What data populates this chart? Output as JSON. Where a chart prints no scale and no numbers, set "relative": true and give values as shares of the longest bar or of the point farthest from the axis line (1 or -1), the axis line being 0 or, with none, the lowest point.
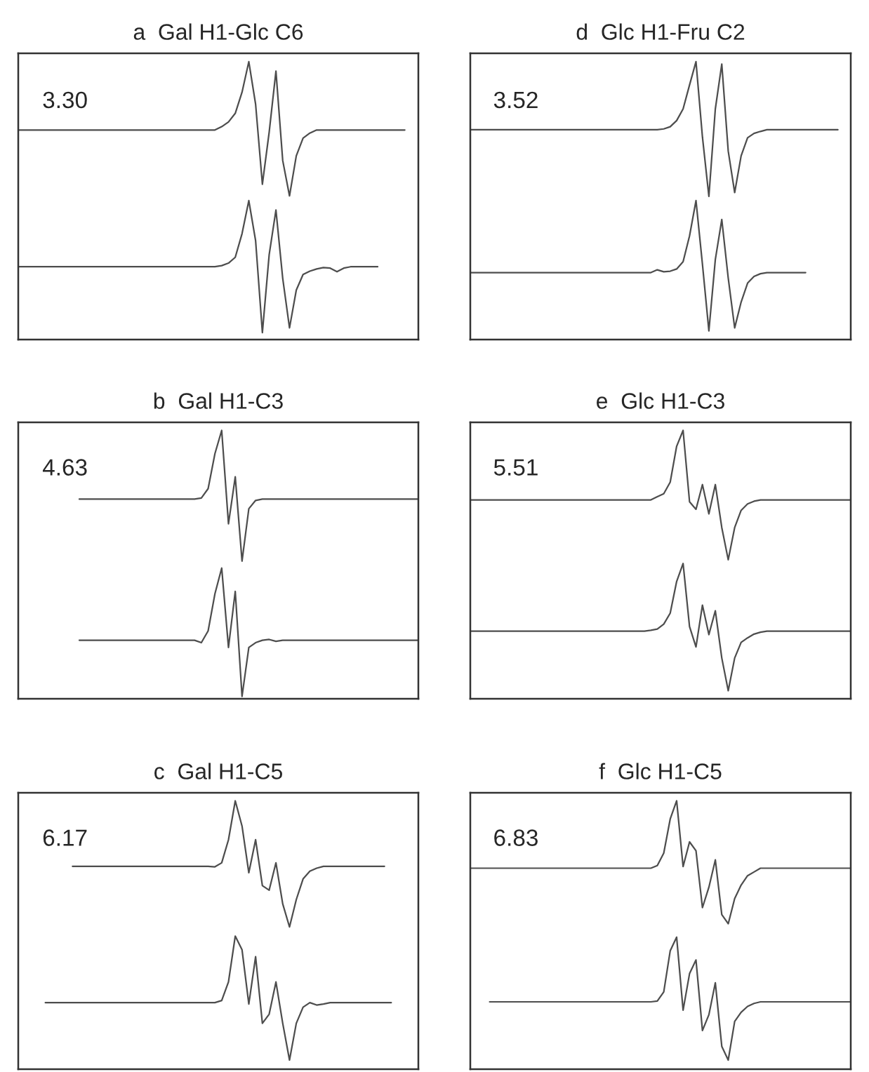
{
  "chart_data": [
    {
      "type": "line",
      "relative": true,
      "title": "a  Gal H1-Glc C6",
      "annotations": [
        "3.30"
      ],
      "categories": [
        null,
        null,
        null,
        null,
        null,
        null,
        null,
        null,
        null,
        null,
        null,
        null,
        null,
        null,
        null,
        null,
        null,
        null,
        null,
        null,
        null,
        null,
        null,
        null,
        null,
        null,
        null,
        null,
        null,
        null,
        null,
        null,
        null,
        null,
        null,
        null,
        null,
        null,
        null,
        null,
        null,
        null,
        null,
        null,
        null,
        null,
        null,
        null,
        null,
        null,
        null,
        null,
        null,
        null,
        null,
        null,
        null,
        null,
        null,
        null
      ],
      "series": [
        {
          "color": "#4d4d4d",
          "values": [
            0.754,
            0.754,
            0.754,
            0.754,
            0.754,
            0.754,
            0.754,
            0.754,
            0.754,
            0.754,
            0.754,
            0.754,
            0.754,
            0.754,
            0.754,
            0.754,
            0.754,
            0.754,
            0.754,
            0.754,
            0.754,
            0.754,
            0.754,
            0.754,
            0.754,
            0.754,
            0.754,
            0.754,
            0.754,
            0.754,
            0.766,
            0.783,
            0.814,
            0.89,
            1.0,
            0.847,
            0.559,
            0.746,
            0.966,
            0.644,
            0.517,
            0.661,
            0.725,
            0.743,
            0.754,
            0.754,
            0.754,
            0.754,
            0.754,
            0.754,
            0.754,
            0.754,
            0.754,
            0.754,
            0.754,
            0.754,
            0.754,
            0.754,
            null,
            null
          ]
        },
        {
          "color": "#4d4d4d",
          "values": [
            0.262,
            0.262,
            0.262,
            0.262,
            0.262,
            0.262,
            0.262,
            0.262,
            0.262,
            0.262,
            0.262,
            0.262,
            0.262,
            0.262,
            0.262,
            0.262,
            0.262,
            0.262,
            0.262,
            0.262,
            0.262,
            0.262,
            0.262,
            0.262,
            0.262,
            0.262,
            0.262,
            0.262,
            0.262,
            0.262,
            0.266,
            0.275,
            0.296,
            0.381,
            0.5,
            0.356,
            0.025,
            0.305,
            0.466,
            0.22,
            0.042,
            0.178,
            0.234,
            0.246,
            0.254,
            0.259,
            0.257,
            0.244,
            0.257,
            0.262,
            0.262,
            0.262,
            0.262,
            0.262,
            null,
            null,
            null,
            null,
            null,
            null
          ]
        }
      ]
    },
    {
      "type": "line",
      "relative": true,
      "title": "d  Glc H1-Fru C2",
      "annotations": [
        "3.52"
      ],
      "categories": [
        null,
        null,
        null,
        null,
        null,
        null,
        null,
        null,
        null,
        null,
        null,
        null,
        null,
        null,
        null,
        null,
        null,
        null,
        null,
        null,
        null,
        null,
        null,
        null,
        null,
        null,
        null,
        null,
        null,
        null,
        null,
        null,
        null,
        null,
        null,
        null,
        null,
        null,
        null,
        null,
        null,
        null,
        null,
        null,
        null,
        null,
        null,
        null,
        null,
        null,
        null,
        null,
        null,
        null,
        null,
        null,
        null,
        null,
        null,
        null
      ],
      "series": [
        {
          "color": "#4d4d4d",
          "values": [
            0.755,
            0.755,
            0.755,
            0.755,
            0.755,
            0.755,
            0.755,
            0.755,
            0.755,
            0.755,
            0.755,
            0.755,
            0.755,
            0.755,
            0.755,
            0.755,
            0.755,
            0.755,
            0.755,
            0.755,
            0.755,
            0.755,
            0.755,
            0.755,
            0.755,
            0.755,
            0.755,
            0.755,
            0.755,
            0.755,
            0.758,
            0.766,
            0.788,
            0.83,
            0.916,
            1.0,
            0.729,
            0.515,
            0.83,
            0.991,
            0.678,
            0.529,
            0.661,
            0.726,
            0.742,
            0.749,
            0.755,
            0.755,
            0.755,
            0.755,
            0.755,
            0.755,
            0.755,
            0.755,
            0.755,
            0.755,
            0.755,
            0.755,
            null,
            null
          ]
        },
        {
          "color": "#4d4d4d",
          "values": [
            0.241,
            0.241,
            0.241,
            0.241,
            0.241,
            0.241,
            0.241,
            0.241,
            0.241,
            0.241,
            0.241,
            0.241,
            0.241,
            0.241,
            0.241,
            0.241,
            0.241,
            0.241,
            0.241,
            0.241,
            0.241,
            0.241,
            0.241,
            0.241,
            0.241,
            0.241,
            0.241,
            0.241,
            0.241,
            0.251,
            0.244,
            0.246,
            0.254,
            0.28,
            0.373,
            0.5,
            0.271,
            0.031,
            0.288,
            0.432,
            0.221,
            0.042,
            0.135,
            0.203,
            0.227,
            0.237,
            0.241,
            0.241,
            0.241,
            0.241,
            0.241,
            0.241,
            0.241,
            null,
            null,
            null,
            null,
            null,
            null,
            null
          ]
        }
      ]
    },
    {
      "type": "line",
      "relative": true,
      "title": "b  Gal H1-C3",
      "annotations": [
        "4.63"
      ],
      "categories": [
        null,
        null,
        null,
        null,
        null,
        null,
        null,
        null,
        null,
        null,
        null,
        null,
        null,
        null,
        null,
        null,
        null,
        null,
        null,
        null,
        null,
        null,
        null,
        null,
        null,
        null,
        null,
        null,
        null,
        null,
        null,
        null,
        null,
        null,
        null,
        null,
        null,
        null,
        null,
        null,
        null,
        null,
        null,
        null,
        null,
        null,
        null,
        null,
        null,
        null,
        null,
        null,
        null,
        null,
        null,
        null,
        null,
        null,
        null,
        null
      ],
      "series": [
        {
          "color": "#4d4d4d",
          "values": [
            null,
            null,
            null,
            null,
            null,
            null,
            null,
            null,
            null,
            0.744,
            0.744,
            0.744,
            0.744,
            0.744,
            0.744,
            0.744,
            0.744,
            0.744,
            0.744,
            0.744,
            0.744,
            0.744,
            0.744,
            0.744,
            0.744,
            0.744,
            0.744,
            0.748,
            0.783,
            0.913,
            1.0,
            0.652,
            0.827,
            0.513,
            0.708,
            0.739,
            0.744,
            0.744,
            0.744,
            0.744,
            0.744,
            0.744,
            0.744,
            0.744,
            0.744,
            0.744,
            0.744,
            0.744,
            0.744,
            0.744,
            0.744,
            0.744,
            0.744,
            0.744,
            0.744,
            0.744,
            0.744,
            0.744,
            0.744,
            0.744
          ]
        },
        {
          "color": "#4d4d4d",
          "values": [
            null,
            null,
            null,
            null,
            null,
            null,
            null,
            null,
            null,
            0.218,
            0.218,
            0.218,
            0.218,
            0.218,
            0.218,
            0.218,
            0.218,
            0.218,
            0.218,
            0.218,
            0.218,
            0.218,
            0.218,
            0.218,
            0.218,
            0.218,
            0.218,
            0.209,
            0.253,
            0.391,
            0.487,
            0.191,
            0.4,
            0.009,
            0.191,
            0.209,
            0.218,
            0.221,
            0.214,
            0.218,
            0.218,
            0.218,
            0.218,
            0.218,
            0.218,
            0.218,
            0.218,
            0.218,
            0.218,
            0.218,
            0.218,
            0.218,
            0.218,
            0.218,
            0.218,
            0.218,
            0.218,
            0.218,
            0.218,
            0.218
          ]
        }
      ]
    },
    {
      "type": "line",
      "relative": true,
      "title": "e  Glc H1-C3",
      "annotations": [
        "5.51"
      ],
      "categories": [
        null,
        null,
        null,
        null,
        null,
        null,
        null,
        null,
        null,
        null,
        null,
        null,
        null,
        null,
        null,
        null,
        null,
        null,
        null,
        null,
        null,
        null,
        null,
        null,
        null,
        null,
        null,
        null,
        null,
        null,
        null,
        null,
        null,
        null,
        null,
        null,
        null,
        null,
        null,
        null,
        null,
        null,
        null,
        null,
        null,
        null,
        null,
        null,
        null,
        null,
        null,
        null,
        null,
        null,
        null,
        null,
        null,
        null,
        null,
        null
      ],
      "series": [
        {
          "color": "#4d4d4d",
          "values": [
            0.741,
            0.741,
            0.741,
            0.741,
            0.741,
            0.741,
            0.741,
            0.741,
            0.741,
            0.741,
            0.741,
            0.741,
            0.741,
            0.741,
            0.741,
            0.741,
            0.741,
            0.741,
            0.741,
            0.741,
            0.741,
            0.741,
            0.741,
            0.741,
            0.741,
            0.741,
            0.741,
            0.741,
            0.741,
            0.753,
            0.764,
            0.807,
            0.941,
            1.0,
            0.734,
            0.706,
            0.798,
            0.689,
            0.798,
            0.638,
            0.518,
            0.638,
            0.702,
            0.726,
            0.736,
            0.741,
            0.741,
            0.741,
            0.741,
            0.741,
            0.741,
            0.741,
            0.741,
            0.741,
            0.741,
            0.741,
            0.741,
            0.741,
            0.741,
            0.741
          ]
        },
        {
          "color": "#4d4d4d",
          "values": [
            0.252,
            0.252,
            0.252,
            0.252,
            0.252,
            0.252,
            0.252,
            0.252,
            0.252,
            0.252,
            0.252,
            0.252,
            0.252,
            0.252,
            0.252,
            0.252,
            0.252,
            0.252,
            0.252,
            0.252,
            0.252,
            0.252,
            0.252,
            0.252,
            0.252,
            0.252,
            0.252,
            0.252,
            0.255,
            0.26,
            0.278,
            0.319,
            0.437,
            0.504,
            0.269,
            0.193,
            0.349,
            0.239,
            0.328,
            0.152,
            0.03,
            0.152,
            0.21,
            0.227,
            0.241,
            0.248,
            0.252,
            0.252,
            0.252,
            0.252,
            0.252,
            0.252,
            0.252,
            0.252,
            0.252,
            0.252,
            0.252,
            0.252,
            0.252,
            0.252
          ]
        }
      ]
    },
    {
      "type": "line",
      "relative": true,
      "title": "c  Gal H1-C5",
      "annotations": [
        "6.17"
      ],
      "categories": [
        null,
        null,
        null,
        null,
        null,
        null,
        null,
        null,
        null,
        null,
        null,
        null,
        null,
        null,
        null,
        null,
        null,
        null,
        null,
        null,
        null,
        null,
        null,
        null,
        null,
        null,
        null,
        null,
        null,
        null,
        null,
        null,
        null,
        null,
        null,
        null,
        null,
        null,
        null,
        null,
        null,
        null,
        null,
        null,
        null,
        null,
        null,
        null,
        null,
        null,
        null,
        null,
        null,
        null,
        null,
        null,
        null,
        null,
        null,
        null
      ],
      "series": [
        {
          "color": "#4d4d4d",
          "values": [
            null,
            null,
            null,
            null,
            null,
            null,
            null,
            null,
            0.756,
            0.756,
            0.756,
            0.756,
            0.756,
            0.756,
            0.756,
            0.756,
            0.756,
            0.756,
            0.756,
            0.756,
            0.756,
            0.756,
            0.756,
            0.756,
            0.756,
            0.756,
            0.756,
            0.756,
            0.756,
            0.754,
            0.769,
            0.855,
            1.0,
            0.906,
            0.732,
            0.855,
            0.684,
            0.667,
            0.769,
            0.616,
            0.53,
            0.632,
            0.709,
            0.738,
            0.749,
            0.756,
            0.756,
            0.756,
            0.756,
            0.756,
            0.756,
            0.756,
            0.756,
            0.756,
            0.756,
            null,
            null,
            null,
            null,
            null
          ]
        },
        {
          "color": "#4d4d4d",
          "values": [
            null,
            null,
            null,
            null,
            0.248,
            0.248,
            0.248,
            0.248,
            0.248,
            0.248,
            0.248,
            0.248,
            0.248,
            0.248,
            0.248,
            0.248,
            0.248,
            0.248,
            0.248,
            0.248,
            0.248,
            0.248,
            0.248,
            0.248,
            0.248,
            0.248,
            0.248,
            0.248,
            0.248,
            0.248,
            0.256,
            0.325,
            0.496,
            0.445,
            0.243,
            0.419,
            0.171,
            0.205,
            0.325,
            0.171,
            0.034,
            0.171,
            0.231,
            0.248,
            0.239,
            0.243,
            0.248,
            0.248,
            0.248,
            0.248,
            0.248,
            0.248,
            0.248,
            0.248,
            0.248,
            0.248,
            null,
            null,
            null,
            null
          ]
        }
      ]
    },
    {
      "type": "line",
      "relative": true,
      "title": "f  Glc H1-C5",
      "annotations": [
        "6.83"
      ],
      "categories": [
        null,
        null,
        null,
        null,
        null,
        null,
        null,
        null,
        null,
        null,
        null,
        null,
        null,
        null,
        null,
        null,
        null,
        null,
        null,
        null,
        null,
        null,
        null,
        null,
        null,
        null,
        null,
        null,
        null,
        null,
        null,
        null,
        null,
        null,
        null,
        null,
        null,
        null,
        null,
        null,
        null,
        null,
        null,
        null,
        null,
        null,
        null,
        null,
        null,
        null,
        null,
        null,
        null,
        null,
        null,
        null,
        null,
        null,
        null,
        null
      ],
      "series": [
        {
          "color": "#4d4d4d",
          "values": [
            0.749,
            0.749,
            0.749,
            0.749,
            0.749,
            0.749,
            0.749,
            0.749,
            0.749,
            0.749,
            0.749,
            0.749,
            0.749,
            0.749,
            0.749,
            0.749,
            0.749,
            0.749,
            0.749,
            0.749,
            0.749,
            0.749,
            0.749,
            0.749,
            0.749,
            0.749,
            0.749,
            0.749,
            0.749,
            0.759,
            0.805,
            0.932,
            1.0,
            0.755,
            0.847,
            0.814,
            0.602,
            0.678,
            0.78,
            0.576,
            0.542,
            0.636,
            0.686,
            0.721,
            0.735,
            0.749,
            0.749,
            0.749,
            0.749,
            0.749,
            0.749,
            0.749,
            0.749,
            0.749,
            0.749,
            0.749,
            0.749,
            0.749,
            0.749,
            0.749
          ]
        },
        {
          "color": "#4d4d4d",
          "values": [
            null,
            null,
            null,
            0.251,
            0.251,
            0.251,
            0.251,
            0.251,
            0.251,
            0.251,
            0.251,
            0.251,
            0.251,
            0.251,
            0.251,
            0.251,
            0.251,
            0.251,
            0.251,
            0.251,
            0.251,
            0.251,
            0.251,
            0.251,
            0.251,
            0.251,
            0.251,
            0.251,
            0.251,
            0.254,
            0.288,
            0.441,
            0.492,
            0.22,
            0.356,
            0.407,
            0.144,
            0.203,
            0.322,
            0.085,
            0.034,
            0.178,
            0.212,
            0.234,
            0.245,
            0.251,
            0.251,
            0.251,
            0.251,
            0.251,
            0.251,
            0.251,
            0.251,
            0.251,
            0.251,
            0.251,
            0.251,
            0.251,
            0.251,
            0.251
          ]
        }
      ]
    }
  ]
}
